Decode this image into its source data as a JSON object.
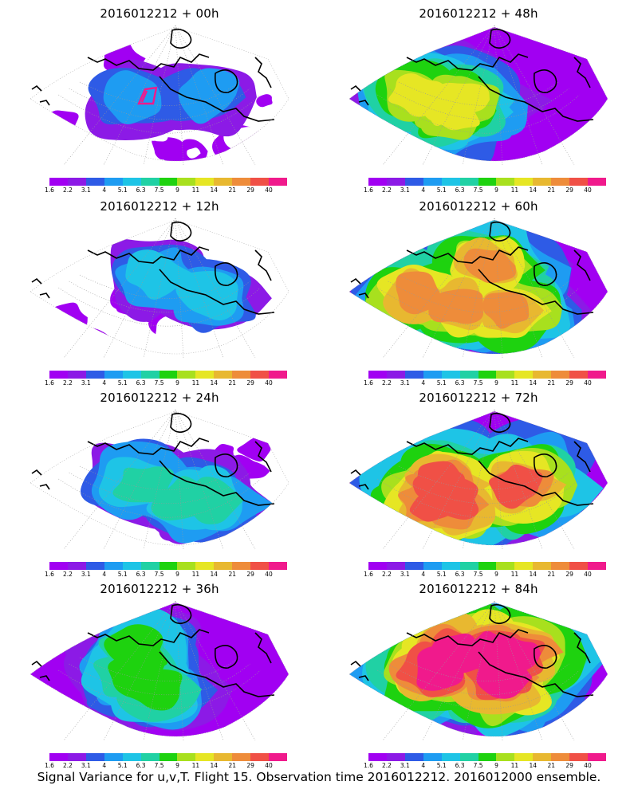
{
  "panels": [
    {
      "title": "2016012212 + 00h"
    },
    {
      "title": "2016012212 + 48h"
    },
    {
      "title": "2016012212 + 12h"
    },
    {
      "title": "2016012212 + 60h"
    },
    {
      "title": "2016012212 + 24h"
    },
    {
      "title": "2016012212 + 72h"
    },
    {
      "title": "2016012212 + 36h"
    },
    {
      "title": "2016012212 + 84h"
    }
  ],
  "colorbar": {
    "labels": [
      "1.6",
      "2.2",
      "3.1",
      "4",
      "5.1",
      "6.3",
      "7.5",
      "9",
      "11",
      "14",
      "21",
      "29",
      "40"
    ],
    "colors": [
      "#a100f2",
      "#8c1ae6",
      "#2e5be6",
      "#1e9cf2",
      "#1ec4e6",
      "#20d1a4",
      "#1ed20f",
      "#a8e01e",
      "#e6e624",
      "#e8b830",
      "#ee8c3a",
      "#f05046",
      "#f01a8c"
    ]
  },
  "footer": "Signal Variance for u,v,T. Flight 15. Observation time 2016012212. 2016012000 ensemble."
}
